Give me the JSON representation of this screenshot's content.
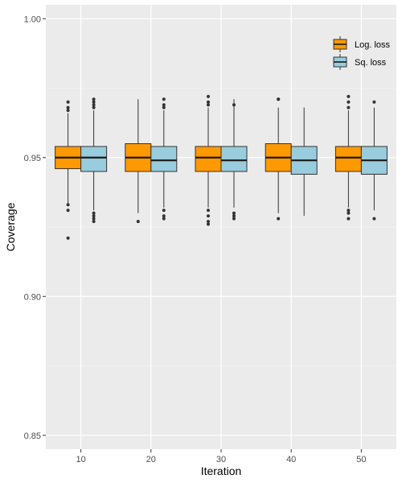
{
  "chart_data": {
    "type": "boxplot",
    "xlabel": "Iteration",
    "ylabel": "Coverage",
    "categories": [
      "10",
      "20",
      "30",
      "40",
      "50"
    ],
    "ylim": [
      0.845,
      1.005
    ],
    "yticks": [
      0.85,
      0.9,
      0.95,
      1.0
    ],
    "ytick_labels": [
      "0.85",
      "0.90",
      "0.95",
      "1.00"
    ],
    "grid": true,
    "legend_position": "top-right",
    "series": [
      {
        "name": "Log. loss",
        "color": "#FF9900",
        "boxes": [
          {
            "min": 0.933,
            "q1": 0.946,
            "median": 0.95,
            "q3": 0.954,
            "max": 0.966,
            "outliers": [
              0.97,
              0.968,
              0.967,
              0.933,
              0.931,
              0.921
            ]
          },
          {
            "min": 0.93,
            "q1": 0.945,
            "median": 0.95,
            "q3": 0.955,
            "max": 0.971,
            "outliers": [
              0.927
            ]
          },
          {
            "min": 0.932,
            "q1": 0.945,
            "median": 0.95,
            "q3": 0.954,
            "max": 0.968,
            "outliers": [
              0.972,
              0.97,
              0.969,
              0.931,
              0.929,
              0.927,
              0.926
            ]
          },
          {
            "min": 0.93,
            "q1": 0.945,
            "median": 0.95,
            "q3": 0.955,
            "max": 0.968,
            "outliers": [
              0.971,
              0.971,
              0.928
            ]
          },
          {
            "min": 0.932,
            "q1": 0.945,
            "median": 0.95,
            "q3": 0.954,
            "max": 0.967,
            "outliers": [
              0.972,
              0.97,
              0.968,
              0.931,
              0.93,
              0.928
            ]
          }
        ]
      },
      {
        "name": "Sq. loss",
        "color": "#99CCDD",
        "boxes": [
          {
            "min": 0.931,
            "q1": 0.945,
            "median": 0.95,
            "q3": 0.954,
            "max": 0.967,
            "outliers": [
              0.971,
              0.97,
              0.969,
              0.968,
              0.93,
              0.929,
              0.928,
              0.927
            ]
          },
          {
            "min": 0.932,
            "q1": 0.945,
            "median": 0.949,
            "q3": 0.954,
            "max": 0.967,
            "outliers": [
              0.971,
              0.969,
              0.968,
              0.931,
              0.929,
              0.928
            ]
          },
          {
            "min": 0.932,
            "q1": 0.945,
            "median": 0.949,
            "q3": 0.954,
            "max": 0.971,
            "outliers": [
              0.969,
              0.93,
              0.929,
              0.928
            ]
          },
          {
            "min": 0.929,
            "q1": 0.944,
            "median": 0.949,
            "q3": 0.954,
            "max": 0.968,
            "outliers": []
          },
          {
            "min": 0.931,
            "q1": 0.944,
            "median": 0.949,
            "q3": 0.954,
            "max": 0.968,
            "outliers": [
              0.97,
              0.928
            ]
          }
        ]
      }
    ]
  }
}
